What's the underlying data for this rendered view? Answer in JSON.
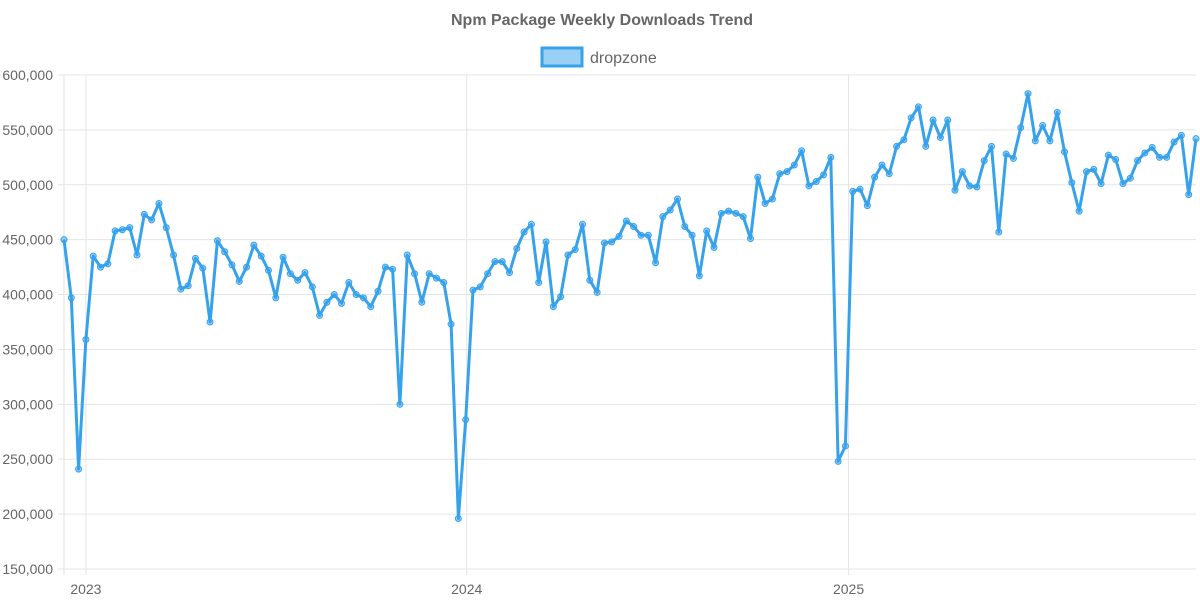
{
  "chart_data": {
    "type": "line",
    "title": "Npm Package Weekly Downloads Trend",
    "xlabel": "",
    "ylabel": "",
    "ylim": [
      150000,
      600000
    ],
    "y_ticks": [
      "150,000",
      "200,000",
      "250,000",
      "300,000",
      "350,000",
      "400,000",
      "450,000",
      "500,000",
      "550,000",
      "600,000"
    ],
    "x_ticks": [
      "2023",
      "2024",
      "2025"
    ],
    "grid": true,
    "legend": "top",
    "colors": {
      "line": "#36a2eb",
      "fill": "rgba(54,162,235,0.5)"
    },
    "x": [
      "2022-12-11",
      "2022-12-18",
      "2022-12-25",
      "2023-01-01",
      "2023-01-08",
      "2023-01-15",
      "2023-01-22",
      "2023-01-29",
      "2023-02-05",
      "2023-02-12",
      "2023-02-19",
      "2023-02-26",
      "2023-03-05",
      "2023-03-12",
      "2023-03-19",
      "2023-03-26",
      "2023-04-02",
      "2023-04-09",
      "2023-04-16",
      "2023-04-23",
      "2023-04-30",
      "2023-05-07",
      "2023-05-14",
      "2023-05-21",
      "2023-05-28",
      "2023-06-04",
      "2023-06-11",
      "2023-06-18",
      "2023-06-25",
      "2023-07-02",
      "2023-07-09",
      "2023-07-16",
      "2023-07-23",
      "2023-07-30",
      "2023-08-06",
      "2023-08-13",
      "2023-08-20",
      "2023-08-27",
      "2023-09-03",
      "2023-09-10",
      "2023-09-17",
      "2023-09-24",
      "2023-10-01",
      "2023-10-08",
      "2023-10-15",
      "2023-10-22",
      "2023-10-29",
      "2023-11-05",
      "2023-11-12",
      "2023-11-19",
      "2023-11-26",
      "2023-12-03",
      "2023-12-10",
      "2023-12-17",
      "2023-12-24",
      "2023-12-31",
      "2024-01-07",
      "2024-01-14",
      "2024-01-21",
      "2024-01-28",
      "2024-02-04",
      "2024-02-11",
      "2024-02-18",
      "2024-02-25",
      "2024-03-03",
      "2024-03-10",
      "2024-03-17",
      "2024-03-24",
      "2024-03-31",
      "2024-04-07",
      "2024-04-14",
      "2024-04-21",
      "2024-04-28",
      "2024-05-05",
      "2024-05-12",
      "2024-05-19",
      "2024-05-26",
      "2024-06-02",
      "2024-06-09",
      "2024-06-16",
      "2024-06-23",
      "2024-06-30",
      "2024-07-07",
      "2024-07-14",
      "2024-07-21",
      "2024-07-28",
      "2024-08-04",
      "2024-08-11",
      "2024-08-18",
      "2024-08-25",
      "2024-09-01",
      "2024-09-08",
      "2024-09-15",
      "2024-09-22",
      "2024-09-29",
      "2024-10-06",
      "2024-10-13",
      "2024-10-20",
      "2024-10-27",
      "2024-11-03",
      "2024-11-10",
      "2024-11-17",
      "2024-11-24",
      "2024-12-01",
      "2024-12-08",
      "2024-12-15",
      "2024-12-22",
      "2024-12-29",
      "2025-01-05",
      "2025-01-12",
      "2025-01-19",
      "2025-01-26",
      "2025-02-02",
      "2025-02-09",
      "2025-02-16",
      "2025-02-23",
      "2025-03-02",
      "2025-03-09",
      "2025-03-16",
      "2025-03-23",
      "2025-03-30",
      "2025-04-06",
      "2025-04-13",
      "2025-04-20",
      "2025-04-27",
      "2025-05-04",
      "2025-05-11",
      "2025-05-18",
      "2025-05-25",
      "2025-06-01",
      "2025-06-08",
      "2025-06-15",
      "2025-06-22",
      "2025-06-29",
      "2025-07-06",
      "2025-07-13",
      "2025-07-20",
      "2025-07-27",
      "2025-08-03",
      "2025-08-10",
      "2025-08-17",
      "2025-08-24",
      "2025-08-31",
      "2025-09-07",
      "2025-09-14",
      "2025-09-21",
      "2025-09-28",
      "2025-10-05",
      "2025-10-12",
      "2025-10-19",
      "2025-10-26",
      "2025-11-02",
      "2025-11-09",
      "2025-11-16",
      "2025-11-23",
      "2025-11-30"
    ],
    "series": [
      {
        "name": "dropzone",
        "values": [
          450000,
          397000,
          241000,
          359000,
          435000,
          425000,
          428000,
          458000,
          459000,
          461000,
          436000,
          473000,
          468000,
          483000,
          461000,
          436000,
          405000,
          408000,
          433000,
          424000,
          375000,
          449000,
          439000,
          427000,
          412000,
          425000,
          445000,
          435000,
          422000,
          397000,
          434000,
          419000,
          413000,
          420000,
          407000,
          381000,
          393000,
          400000,
          392000,
          411000,
          400000,
          397000,
          389000,
          403000,
          425000,
          423000,
          300000,
          436000,
          419000,
          393000,
          419000,
          415000,
          411000,
          373000,
          196000,
          286000,
          404000,
          407000,
          419000,
          430000,
          430000,
          420000,
          442000,
          457000,
          464000,
          411000,
          448000,
          389000,
          398000,
          436000,
          441000,
          464000,
          413000,
          402000,
          447000,
          448000,
          453000,
          467000,
          462000,
          454000,
          454000,
          429000,
          471000,
          477000,
          487000,
          462000,
          454000,
          417000,
          458000,
          443000,
          474000,
          476000,
          474000,
          471000,
          451000,
          507000,
          483000,
          487000,
          510000,
          512000,
          518000,
          531000,
          499000,
          503000,
          509000,
          525000,
          248000,
          262000,
          494000,
          496000,
          481000,
          507000,
          518000,
          510000,
          535000,
          541000,
          561000,
          571000,
          535000,
          559000,
          543000,
          559000,
          495000,
          512000,
          499000,
          498000,
          522000,
          535000,
          457000,
          528000,
          524000,
          552000,
          583000,
          540000,
          554000,
          540000,
          566000,
          530000,
          502000,
          476000,
          512000,
          514000,
          501000,
          527000,
          523000,
          501000,
          506000,
          522000,
          529000,
          534000,
          525000,
          525000,
          539000,
          545000,
          491000,
          542000
        ]
      }
    ]
  }
}
